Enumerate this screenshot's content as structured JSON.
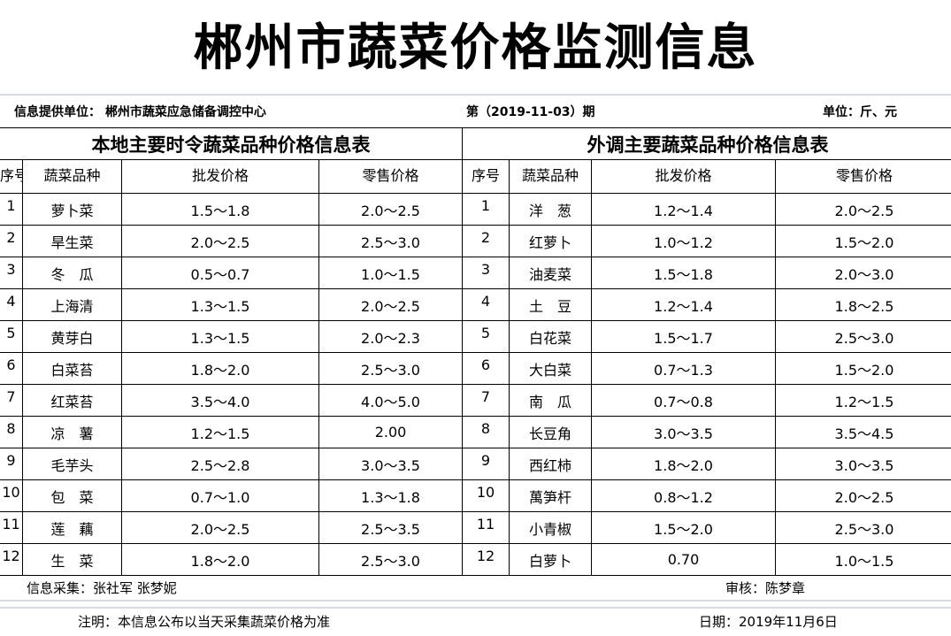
{
  "title": "郴州市蔬菜价格监测信息",
  "info": {
    "provider": "信息提供单位：  郴州市蔬菜应急储备调控中心",
    "issue": "第（2019-11-03）期",
    "unit": "单位：斤、元"
  },
  "headers": {
    "seq": "序号",
    "name": "蔬菜品种",
    "wholesale": "批发价格",
    "retail": "零售价格"
  },
  "local": {
    "title": "本地主要时令蔬菜品种价格信息表",
    "rows": [
      [
        "1",
        "萝卜菜",
        "1.5～1.8",
        "2.0～2.5"
      ],
      [
        "2",
        "旱生菜",
        "2.0～2.5",
        "2.5～3.0"
      ],
      [
        "3",
        "冬　瓜",
        "0.5～0.7",
        "1.0～1.5"
      ],
      [
        "4",
        "上海清",
        "1.3～1.5",
        "2.0～2.5"
      ],
      [
        "5",
        "黄芽白",
        "1.3～1.5",
        "2.0～2.3"
      ],
      [
        "6",
        "白菜苔",
        "1.8～2.0",
        "2.5～3.0"
      ],
      [
        "7",
        "红菜苔",
        "3.5～4.0",
        "4.0～5.0"
      ],
      [
        "8",
        "凉　薯",
        "1.2～1.5",
        "2.00"
      ],
      [
        "9",
        "毛芋头",
        "2.5～2.8",
        "3.0～3.5"
      ],
      [
        "10",
        "包　菜",
        "0.7～1.0",
        "1.3～1.8"
      ],
      [
        "11",
        "莲　藕",
        "2.0～2.5",
        "2.5～3.5"
      ],
      [
        "12",
        "生　菜",
        "1.8～2.0",
        "2.5～3.0"
      ]
    ]
  },
  "external": {
    "title": "外调主要蔬菜品种价格信息表",
    "rows": [
      [
        "1",
        "洋　葱",
        "1.2～1.4",
        "2.0～2.5"
      ],
      [
        "2",
        "红萝卜",
        "1.0～1.2",
        "1.5～2.0"
      ],
      [
        "3",
        "油麦菜",
        "1.5～1.8",
        "2.0～3.0"
      ],
      [
        "4",
        "土　豆",
        "1.2～1.4",
        "1.8～2.5"
      ],
      [
        "5",
        "白花菜",
        "1.5～1.7",
        "2.5～3.0"
      ],
      [
        "6",
        "大白菜",
        "0.7～1.3",
        "1.5～2.0"
      ],
      [
        "7",
        "南　瓜",
        "0.7～0.8",
        "1.2～1.5"
      ],
      [
        "8",
        "长豆角",
        "3.0～3.5",
        "3.5～4.5"
      ],
      [
        "9",
        "西红柿",
        "1.8～2.0",
        "3.0～3.5"
      ],
      [
        "10",
        "萬笋杆",
        "0.8～1.2",
        "2.0～2.5"
      ],
      [
        "11",
        "小青椒",
        "1.5～2.0",
        "2.5～3.0"
      ],
      [
        "12",
        "白萝卜",
        "0.70",
        "1.0～1.5"
      ]
    ]
  },
  "footer": {
    "collectors": "信息采集：张社军  张梦妮",
    "reviewer": "审核：陈梦章",
    "note": "注明：本信息公布以当天采集蔬菜价格为准",
    "date": "日期：2019年11月6日"
  }
}
